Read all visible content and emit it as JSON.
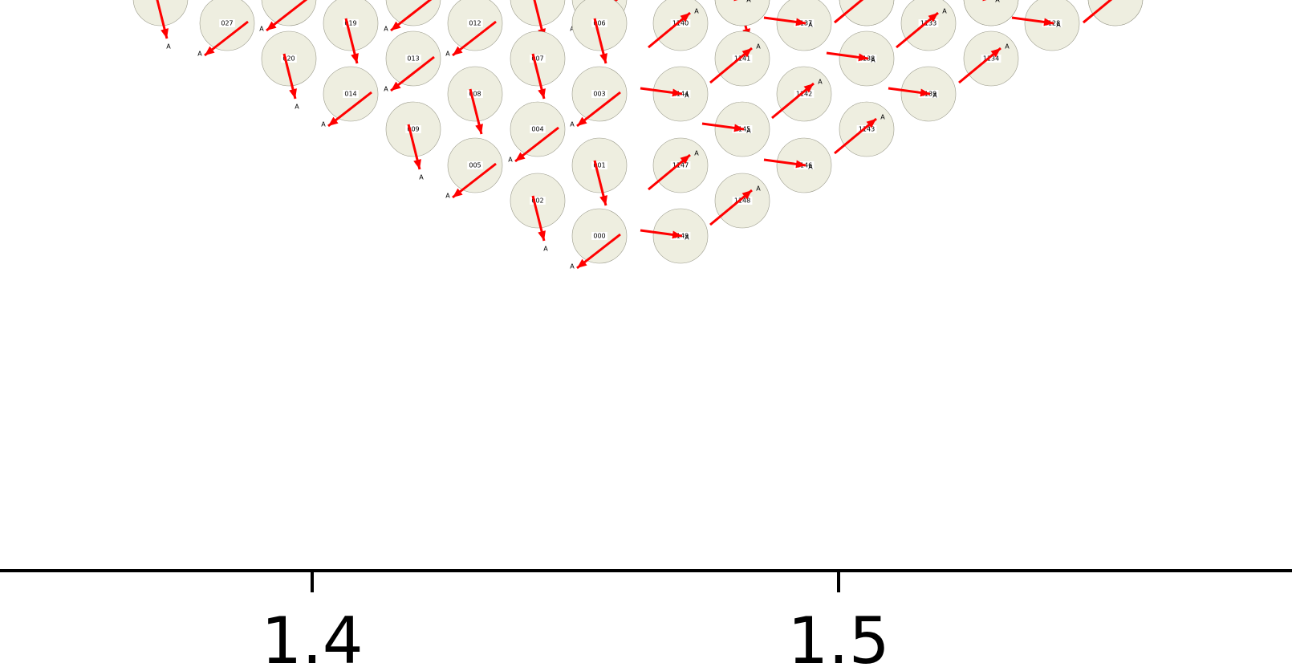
{
  "arrow_tag": "A",
  "colors": {
    "arrow": "#ff0000",
    "node_fill": "#eeeee0",
    "node_stroke": "#9a9a8a",
    "axis": "#000000"
  },
  "nodes": [
    {
      "id": "",
      "dir": "down"
    },
    {
      "id": "",
      "dir": "downleft"
    },
    {
      "id": "",
      "dir": "downleft"
    },
    {
      "id": "",
      "dir": "down"
    },
    {
      "id": "",
      "dir": "downleft"
    },
    {
      "id": "",
      "dir": "down"
    },
    {
      "id": "",
      "dir": "upright"
    },
    {
      "id": "",
      "dir": "right"
    },
    {
      "id": "",
      "dir": "upright"
    },
    {
      "id": "",
      "dir": "right"
    },
    {
      "id": "",
      "dir": "upright"
    },
    {
      "id": "",
      "dir": "right"
    },
    {
      "id": "",
      "dir": "upright"
    },
    {
      "id": "027",
      "dir": "downleft"
    },
    {
      "id": "019",
      "dir": "down"
    },
    {
      "id": "012",
      "dir": "downleft"
    },
    {
      "id": "006",
      "dir": "down"
    },
    {
      "id": "1140",
      "dir": "upright"
    },
    {
      "id": "1137",
      "dir": "right"
    },
    {
      "id": "1133",
      "dir": "upright"
    },
    {
      "id": "1128",
      "dir": "right"
    },
    {
      "id": "020",
      "dir": "down"
    },
    {
      "id": "013",
      "dir": "downleft"
    },
    {
      "id": "007",
      "dir": "down"
    },
    {
      "id": "1141",
      "dir": "upright"
    },
    {
      "id": "1138",
      "dir": "right"
    },
    {
      "id": "1134",
      "dir": "upright"
    },
    {
      "id": "014",
      "dir": "downleft"
    },
    {
      "id": "008",
      "dir": "down"
    },
    {
      "id": "003",
      "dir": "downleft"
    },
    {
      "id": "1144",
      "dir": "right"
    },
    {
      "id": "1142",
      "dir": "upright"
    },
    {
      "id": "1139",
      "dir": "right"
    },
    {
      "id": "009",
      "dir": "down"
    },
    {
      "id": "004",
      "dir": "downleft"
    },
    {
      "id": "1145",
      "dir": "right"
    },
    {
      "id": "1143",
      "dir": "upright"
    },
    {
      "id": "005",
      "dir": "downleft"
    },
    {
      "id": "001",
      "dir": "down"
    },
    {
      "id": "1147",
      "dir": "upright"
    },
    {
      "id": "1146",
      "dir": "right"
    },
    {
      "id": "002",
      "dir": "down"
    },
    {
      "id": "1148",
      "dir": "upright"
    },
    {
      "id": "000",
      "dir": "downleft"
    },
    {
      "id": "1149",
      "dir": "right"
    }
  ],
  "axis": {
    "ticks": [
      {
        "label": "1.4",
        "value": 1.4
      },
      {
        "label": "1.5",
        "value": 1.5
      }
    ]
  }
}
